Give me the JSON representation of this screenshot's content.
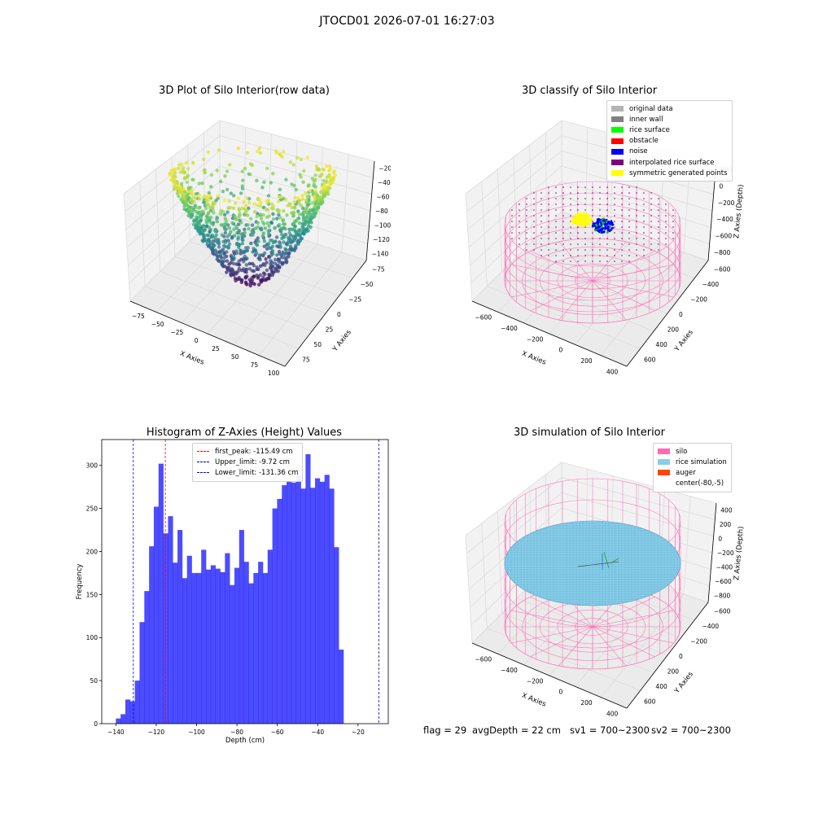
{
  "suptitle": "JTOCD01 2026-07-01 16:27:03",
  "chart_data": [
    {
      "type": "scatter3d",
      "title": "3D Plot of Silo Interior(row data)",
      "xlabel": "X Axies",
      "ylabel": "Y Axies",
      "zlabel": "Z Axies (Depth)",
      "x_ticks": [
        "−75",
        "−50",
        "−25",
        "0",
        "25",
        "50",
        "75",
        "100"
      ],
      "y_ticks": [
        "−75",
        "−50",
        "−25",
        "0",
        "25",
        "50",
        "75"
      ],
      "z_ticks": [
        "−20",
        "−40",
        "−60",
        "−80",
        "−100",
        "−120",
        "−140"
      ],
      "xlim": [
        -85,
        105
      ],
      "ylim": [
        -85,
        90
      ],
      "zlim": [
        -150,
        -10
      ],
      "colormap": "viridis",
      "shape": "bowl-shaped point cloud, rim near -20 to -70, bottom near -140"
    },
    {
      "type": "scatter3d",
      "title": "3D classify of Silo Interior",
      "xlabel": "X Axies",
      "ylabel": "Y Axies",
      "zlabel": "Z Axies (Depth)",
      "x_ticks": [
        "−600",
        "−400",
        "−200",
        "0",
        "200",
        "400"
      ],
      "y_ticks": [
        "−600",
        "−400",
        "−200",
        "0",
        "200",
        "400",
        "600"
      ],
      "z_ticks": [
        "200",
        "0",
        "−200",
        "−400",
        "−600",
        "−800"
      ],
      "legend": [
        {
          "label": "original data",
          "color": "#b3b3b3"
        },
        {
          "label": "inner wall",
          "color": "#808080"
        },
        {
          "label": "rice surface",
          "color": "#00ff00"
        },
        {
          "label": "obstacle",
          "color": "#ff0000"
        },
        {
          "label": "noise",
          "color": "#0000ff"
        },
        {
          "label": "interpolated rice surface",
          "color": "#800080"
        },
        {
          "label": "symmetric generated points",
          "color": "#ffff00"
        }
      ]
    },
    {
      "type": "bar",
      "title": "Histogram of Z-Axies (Height) Values",
      "xlabel": "Depth (cm)",
      "ylabel": "Frequency",
      "xlim": [
        -147,
        -5
      ],
      "ylim": [
        0,
        330
      ],
      "x_ticks": [
        -140,
        -120,
        -100,
        -80,
        -60,
        -40,
        -20
      ],
      "y_ticks": [
        0,
        50,
        100,
        150,
        200,
        250,
        300
      ],
      "bin_edges_start": -140.0,
      "bin_width": 2.35,
      "values": [
        6,
        11,
        28,
        26,
        50,
        118,
        154,
        206,
        252,
        302,
        221,
        241,
        187,
        225,
        169,
        195,
        175,
        175,
        202,
        179,
        184,
        180,
        176,
        198,
        161,
        181,
        225,
        188,
        163,
        175,
        188,
        175,
        202,
        250,
        261,
        277,
        282,
        280,
        289,
        273,
        313,
        274,
        285,
        281,
        289,
        273,
        205,
        86
      ],
      "bar_color": "#0000ff",
      "vlines": [
        {
          "label": "first_peak: -115.49 cm",
          "x": -115.49,
          "color": "#ff0000"
        },
        {
          "label": "Upper_limit: -9.72 cm",
          "x": -9.72,
          "color": "#00008b"
        },
        {
          "label": "Lower_limit: -131.36 cm",
          "x": -131.36,
          "color": "#0000ff"
        }
      ]
    },
    {
      "type": "scatter3d",
      "title": "3D simulation of Silo Interior",
      "xlabel": "X Axies",
      "ylabel": "Y Axies",
      "zlabel": "Z Axies (Depth)",
      "x_ticks": [
        "−600",
        "−400",
        "−200",
        "0",
        "200",
        "400"
      ],
      "y_ticks": [
        "−600",
        "−400",
        "−200",
        "0",
        "200",
        "400",
        "600"
      ],
      "z_ticks": [
        "400",
        "200",
        "0",
        "−200",
        "−400",
        "−600",
        "−800"
      ],
      "legend": [
        {
          "label": "silo",
          "color": "#ff69b4"
        },
        {
          "label": "rice simulation",
          "color": "#87ceeb"
        },
        {
          "label": "auger",
          "color": "#ff4500"
        },
        {
          "label": "center(-80,-5)",
          "color": ""
        }
      ]
    }
  ],
  "status": {
    "flag": "flag = 29",
    "avg_depth": "avgDepth = 22 cm",
    "sv1": "sv1 = 700~2300",
    "sv2": "sv2 = 700~2300"
  }
}
